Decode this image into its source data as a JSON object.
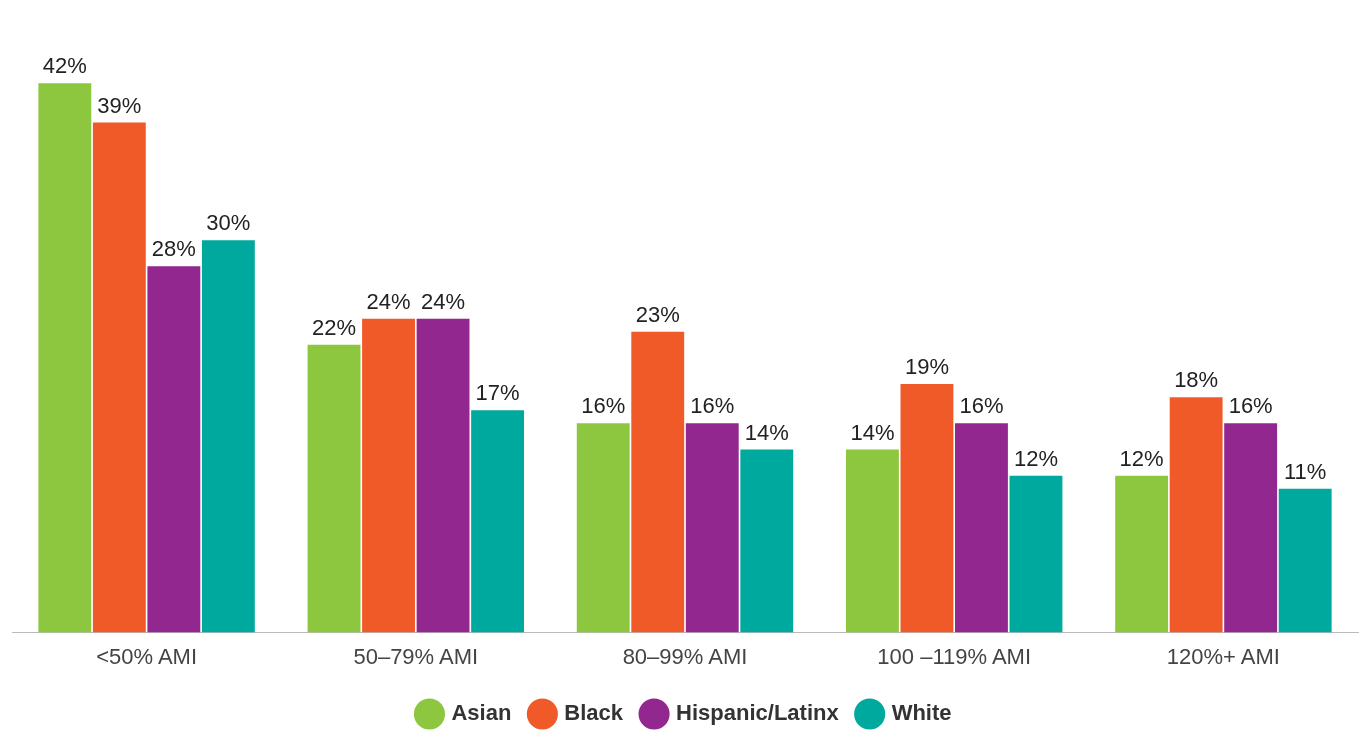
{
  "chart_data": {
    "type": "bar",
    "categories": [
      "<50% AMI",
      "50–79% AMI",
      "80–99% AMI",
      "100 –119% AMI",
      "120%+ AMI"
    ],
    "series": [
      {
        "name": "Asian",
        "color": "#8dc63f",
        "values": [
          42,
          22,
          16,
          14,
          12
        ],
        "value_labels": [
          "42%",
          "22%",
          "16%",
          "14%",
          "12%"
        ]
      },
      {
        "name": "Black",
        "color": "#f05a28",
        "values": [
          39,
          24,
          23,
          19,
          18
        ],
        "value_labels": [
          "39%",
          "24%",
          "23%",
          "19%",
          "18%"
        ]
      },
      {
        "name": "Hispanic/Latinx",
        "color": "#92278f",
        "values": [
          28,
          24,
          16,
          16,
          16
        ],
        "value_labels": [
          "28%",
          "24%",
          "16%",
          "16%",
          "16%"
        ]
      },
      {
        "name": "White",
        "color": "#00a99d",
        "values": [
          30,
          17,
          14,
          12,
          11
        ],
        "value_labels": [
          "30%",
          "17%",
          "14%",
          "12%",
          "11%"
        ]
      }
    ],
    "grid": false,
    "legend": "bottom",
    "tick_labels": "x"
  }
}
